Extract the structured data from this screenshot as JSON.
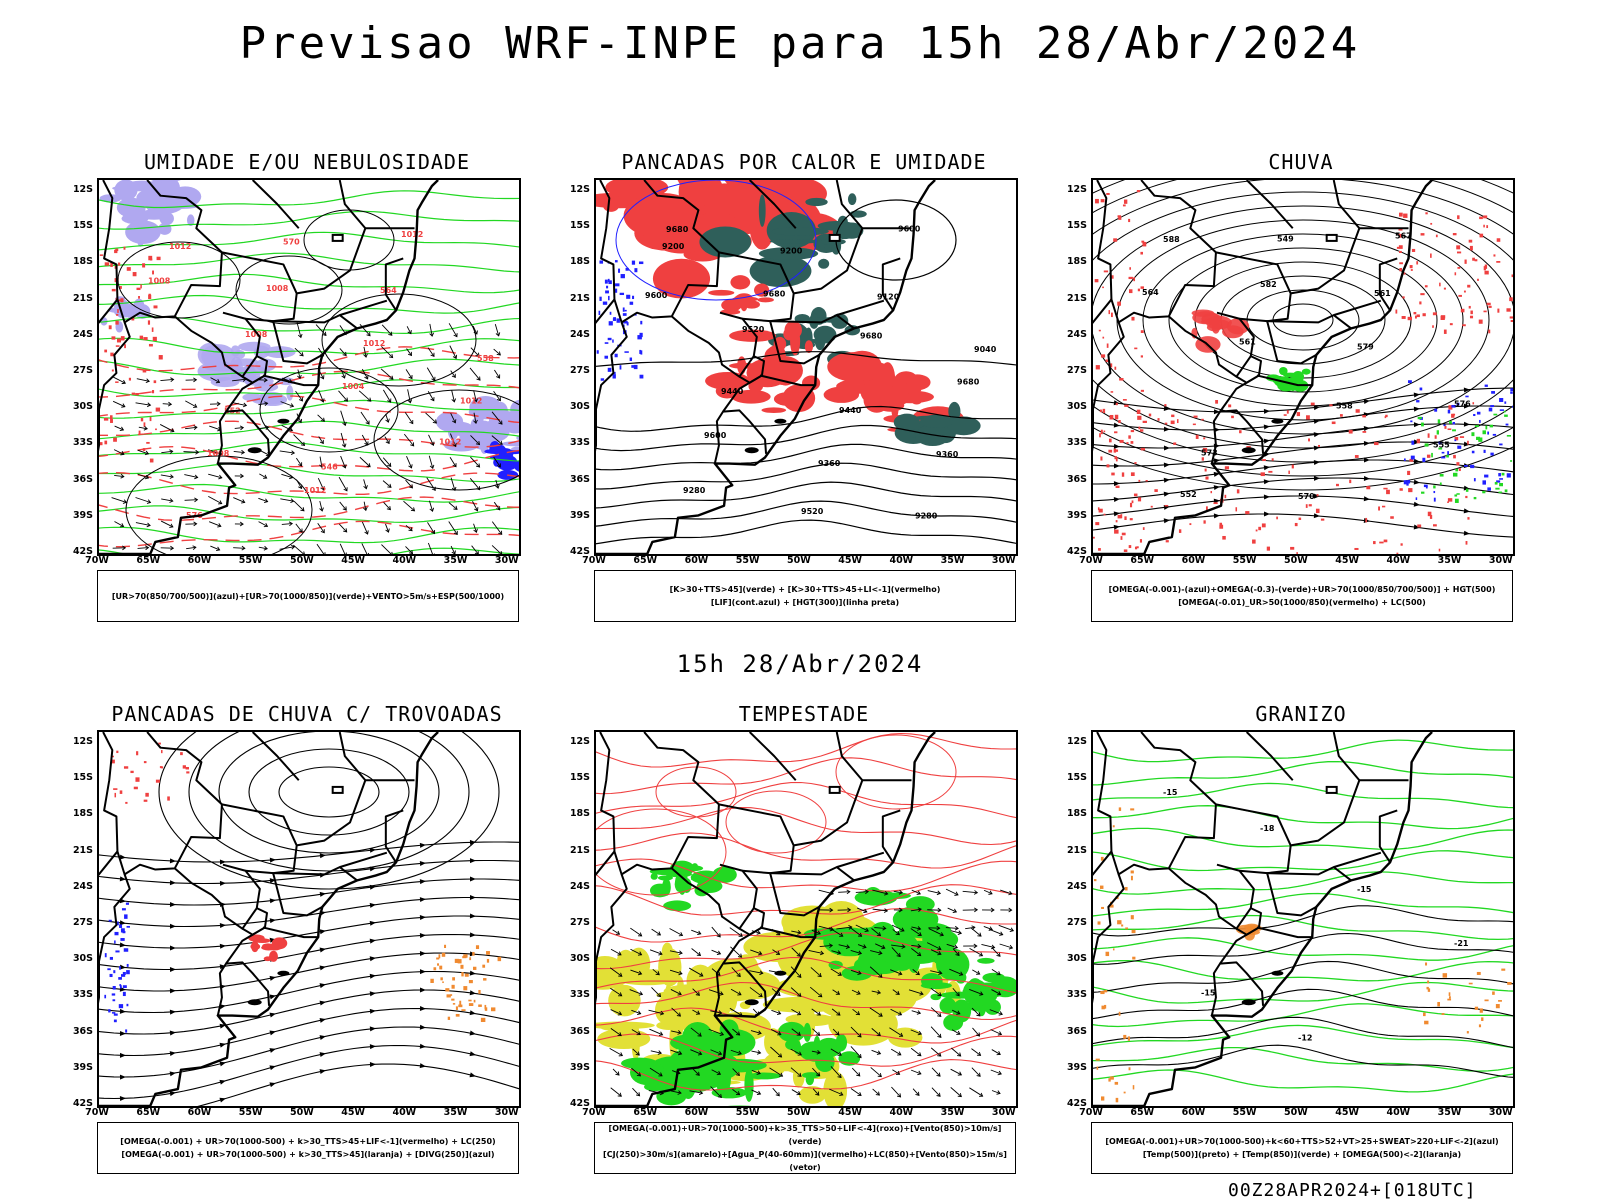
{
  "main_title": "Previsao WRF-INPE  para 15h 28/Abr/2024",
  "mid_title": "15h 28/Abr/2024",
  "footer": "00Z28APR2024+[018UTC]",
  "lat_ticks": [
    "12S",
    "15S",
    "18S",
    "21S",
    "24S",
    "27S",
    "30S",
    "33S",
    "36S",
    "39S",
    "42S"
  ],
  "lon_ticks": [
    "70W",
    "65W",
    "60W",
    "55W",
    "50W",
    "45W",
    "40W",
    "35W",
    "30W"
  ],
  "colors": {
    "red": "#ef4040",
    "green": "#22d822",
    "blue": "#2020ff",
    "lavender": "#b0a8f0",
    "teal": "#2f5f5a",
    "yellow": "#e2e036",
    "orange": "#f08a30",
    "contour": "#000000"
  },
  "panels": [
    {
      "title": "UMIDADE E/OU NEBULOSIDADE",
      "legend": [
        "[UR>70(850/700/500)](azul)+[UR>70(1000/850)](verde)+VENTO>5m/s+ESP(500/1000)"
      ],
      "labels": [
        "1012",
        "1008",
        "1012",
        "1012",
        "1008",
        "1012",
        "1012",
        "1008",
        "1008",
        "1004",
        "1012",
        "576",
        "570",
        "564",
        "558",
        "552",
        "546"
      ]
    },
    {
      "title": "PANCADAS POR CALOR E UMIDADE",
      "legend": [
        "[K>30+TTS>45](verde) + [K>30+TTS>45+LI<-1](vermelho)",
        "[LIF](cont.azul) + [HGT(300)](linha preta)"
      ],
      "labels": [
        "9680",
        "9680",
        "9680",
        "9680",
        "9600",
        "9520",
        "9600",
        "9600",
        "9520",
        "9440",
        "9360",
        "9280",
        "9200",
        "9120",
        "9040",
        "9440",
        "9360",
        "9280",
        "9200"
      ]
    },
    {
      "title": "CHUVA",
      "legend": [
        "[OMEGA(-0.001)-(azul)+OMEGA(-0.3)-(verde)+UR>70(1000/850/700/500)] + HGT(500)",
        "[OMEGA(-0.01)_UR>50(1000/850)(vermelho) + LC(500)"
      ],
      "labels": [
        "588",
        "582",
        "579",
        "576",
        "573",
        "570",
        "567",
        "564",
        "561",
        "558",
        "555",
        "552",
        "549",
        "561"
      ]
    },
    {
      "title": "PANCADAS DE CHUVA C/ TROVOADAS",
      "legend": [
        "[OMEGA(-0.001) + UR>70(1000-500) + k>30_TTS>45+LIF<-1](vermelho) + LC(250)",
        "[OMEGA(-0.001) + UR>70(1000-500) + k>30_TTS>45](laranja) + [DIVG(250)](azul)"
      ],
      "labels": []
    },
    {
      "title": "TEMPESTADE",
      "legend": [
        "[OMEGA(-0.001)+UR>70(1000-500)+k>35_TTS>50+LIF<-4](roxo)+[Vento(850)>10m/s](verde)",
        "[CJ(250)>30m/s](amarelo)+[Agua_P(40-60mm)](vermelho)+LC(850)+[Vento(850)>15m/s](vetor)"
      ],
      "labels": []
    },
    {
      "title": "GRANIZO",
      "legend": [
        "[OMEGA(-0.001)+UR>70(1000-500)+k<60+TTS>52+VT>25+SWEAT>220+LIF<-2](azul)",
        "[Temp(500)](preto) + [Temp(850)](verde) + [OMEGA(500)<-2](laranja)"
      ],
      "labels": [
        "-15",
        "-18",
        "-15",
        "-21",
        "-15",
        "-12"
      ]
    }
  ]
}
